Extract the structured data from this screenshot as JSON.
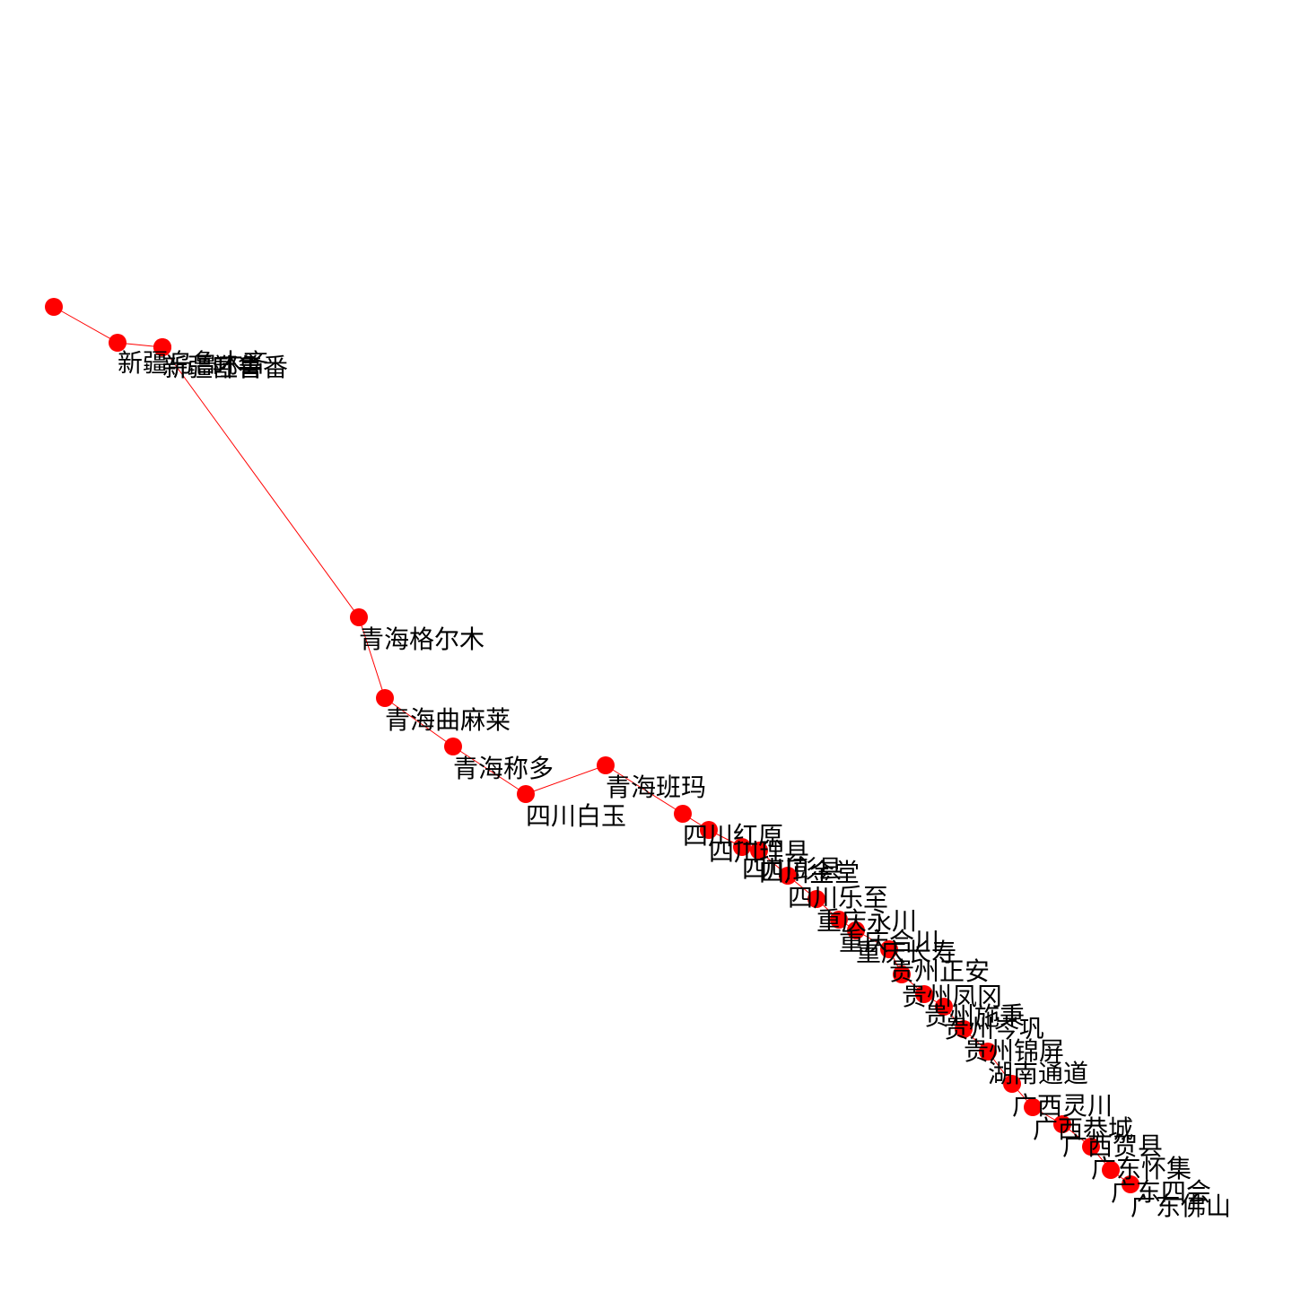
{
  "graph": {
    "node_color": "#ff0000",
    "edge_color": "#ff0000",
    "label_color": "#000000",
    "nodes": [
      {
        "id": "n1",
        "label": ""
      },
      {
        "id": "n2",
        "label": "新疆乌鲁木齐"
      },
      {
        "id": "n3",
        "label": "新疆吐鲁番"
      },
      {
        "id": "n4",
        "label": "新疆鄯善"
      },
      {
        "id": "n5",
        "label": "青海格尔木"
      },
      {
        "id": "n6",
        "label": "青海曲麻莱"
      },
      {
        "id": "n7",
        "label": "青海称多"
      },
      {
        "id": "n8",
        "label": "四川白玉"
      },
      {
        "id": "n9",
        "label": "青海班玛"
      },
      {
        "id": "n10",
        "label": "四川红原"
      },
      {
        "id": "n11",
        "label": "四川理县"
      },
      {
        "id": "n12",
        "label": "四川彭县"
      },
      {
        "id": "n13",
        "label": "四川金堂"
      },
      {
        "id": "n14",
        "label": "四川乐至"
      },
      {
        "id": "n15",
        "label": "重庆永川"
      },
      {
        "id": "n16",
        "label": "重庆合川"
      },
      {
        "id": "n17",
        "label": "重庆长寿"
      },
      {
        "id": "n18",
        "label": "贵州正安"
      },
      {
        "id": "n19",
        "label": "贵州凤冈"
      },
      {
        "id": "n20",
        "label": "贵州施秉"
      },
      {
        "id": "n21",
        "label": "贵州岑巩"
      },
      {
        "id": "n22",
        "label": "贵州锦屏"
      },
      {
        "id": "n23",
        "label": "湖南通道"
      },
      {
        "id": "n24",
        "label": "广西灵川"
      },
      {
        "id": "n25",
        "label": "广西恭城"
      },
      {
        "id": "n26",
        "label": "广西贺县"
      },
      {
        "id": "n27",
        "label": "广东怀集"
      },
      {
        "id": "n28",
        "label": "广东四会"
      },
      {
        "id": "n29",
        "label": "广东佛山"
      }
    ],
    "edges": [
      [
        "n1",
        "n2"
      ],
      [
        "n2",
        "n3"
      ],
      [
        "n3",
        "n4"
      ],
      [
        "n4",
        "n5"
      ],
      [
        "n5",
        "n6"
      ],
      [
        "n6",
        "n7"
      ],
      [
        "n7",
        "n8"
      ],
      [
        "n8",
        "n9"
      ],
      [
        "n9",
        "n10"
      ],
      [
        "n10",
        "n11"
      ],
      [
        "n11",
        "n12"
      ],
      [
        "n12",
        "n13"
      ],
      [
        "n13",
        "n14"
      ],
      [
        "n14",
        "n15"
      ],
      [
        "n15",
        "n16"
      ],
      [
        "n16",
        "n17"
      ],
      [
        "n17",
        "n18"
      ],
      [
        "n18",
        "n19"
      ],
      [
        "n19",
        "n20"
      ],
      [
        "n20",
        "n21"
      ],
      [
        "n21",
        "n22"
      ],
      [
        "n22",
        "n23"
      ],
      [
        "n23",
        "n24"
      ],
      [
        "n24",
        "n25"
      ],
      [
        "n25",
        "n26"
      ],
      [
        "n26",
        "n27"
      ],
      [
        "n27",
        "n28"
      ],
      [
        "n28",
        "n29"
      ]
    ]
  }
}
